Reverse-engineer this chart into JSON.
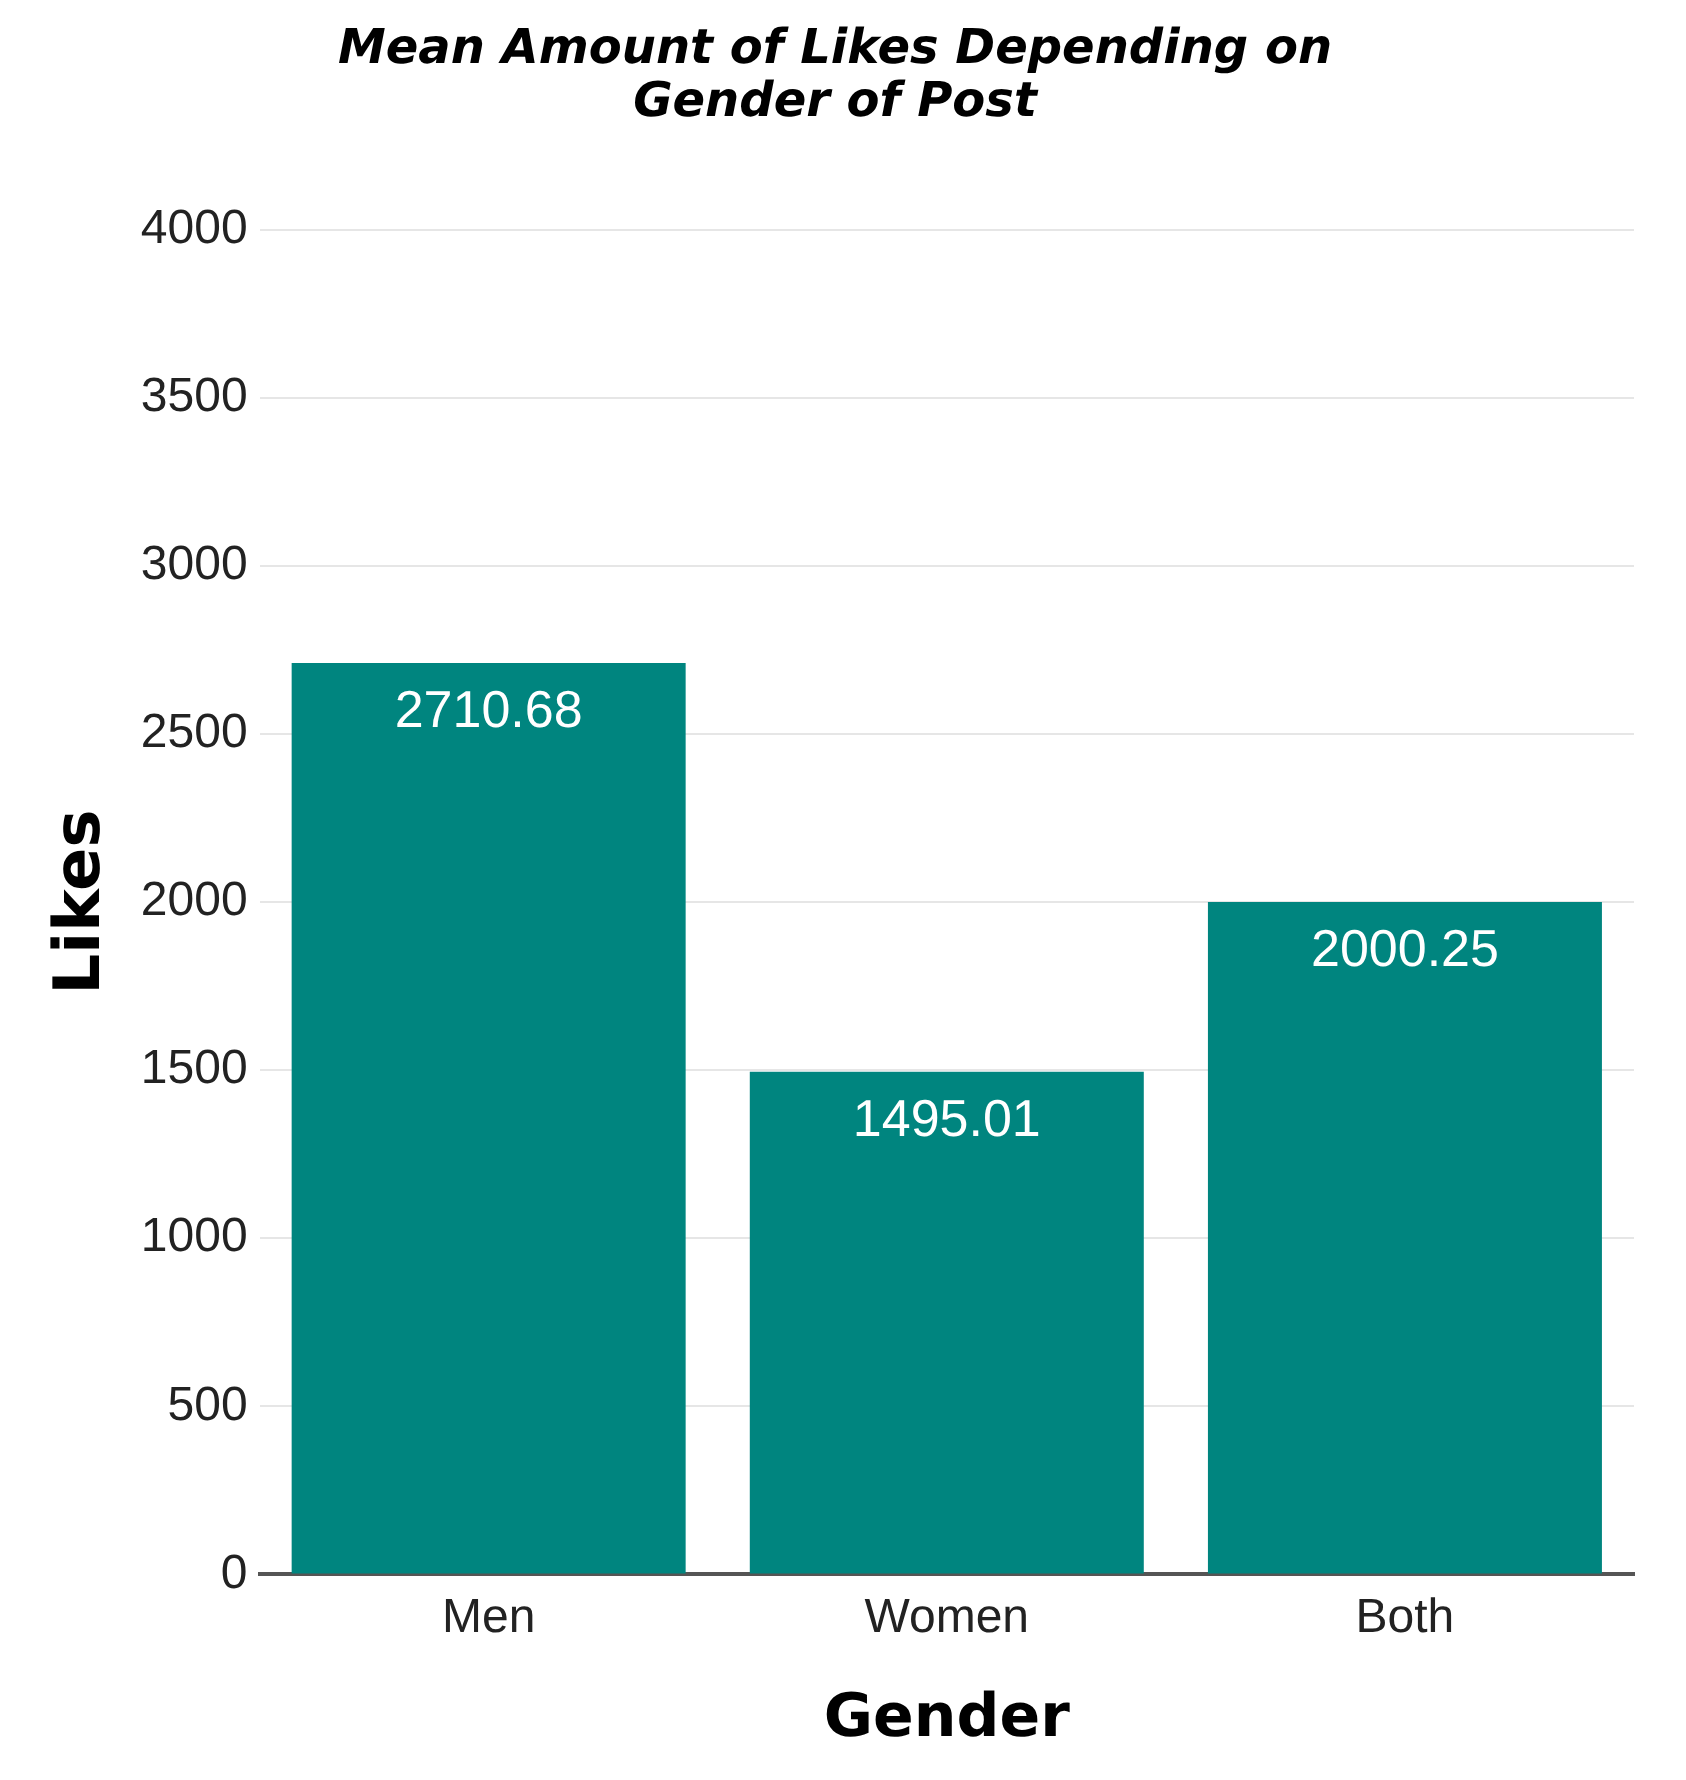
{
  "chart_data": {
    "type": "bar",
    "title": [
      "Mean Amount of Likes Depending on",
      "Gender of Post"
    ],
    "xlabel": "Gender",
    "ylabel": "Likes",
    "categories": [
      "Men",
      "Women",
      "Both"
    ],
    "values": [
      2710.68,
      1495.01,
      2000.25
    ],
    "color": "#00857f",
    "ylim": [
      0,
      4000
    ],
    "yticks": [
      0,
      500,
      1000,
      1500,
      2000,
      2500,
      3000,
      3500,
      4000
    ],
    "grid": "y",
    "data_labels": true
  }
}
